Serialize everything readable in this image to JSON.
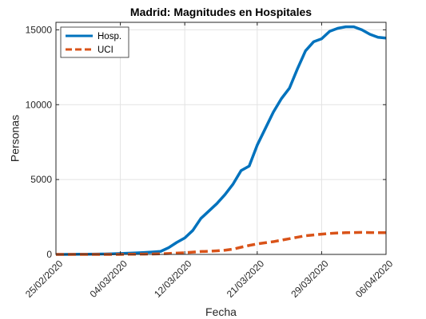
{
  "chart_data": {
    "type": "line",
    "title": "Madrid: Magnitudes en Hospitales",
    "xlabel": "Fecha",
    "ylabel": "Personas",
    "xlim": [
      "25/02/2020",
      "06/04/2020"
    ],
    "ylim": [
      0,
      15500
    ],
    "x_ticks": [
      "25/02/2020",
      "04/03/2020",
      "12/03/2020",
      "21/03/2020",
      "29/03/2020",
      "06/04/2020"
    ],
    "y_ticks": [
      0,
      5000,
      10000,
      15000
    ],
    "grid": true,
    "legend_position": "top-left",
    "x": [
      "25/02/2020",
      "26/02/2020",
      "27/02/2020",
      "28/02/2020",
      "29/02/2020",
      "01/03/2020",
      "02/03/2020",
      "03/03/2020",
      "04/03/2020",
      "05/03/2020",
      "06/03/2020",
      "07/03/2020",
      "08/03/2020",
      "09/03/2020",
      "10/03/2020",
      "11/03/2020",
      "12/03/2020",
      "13/03/2020",
      "14/03/2020",
      "15/03/2020",
      "16/03/2020",
      "17/03/2020",
      "18/03/2020",
      "19/03/2020",
      "20/03/2020",
      "21/03/2020",
      "22/03/2020",
      "23/03/2020",
      "24/03/2020",
      "25/03/2020",
      "26/03/2020",
      "27/03/2020",
      "28/03/2020",
      "29/03/2020",
      "30/03/2020",
      "31/03/2020",
      "01/04/2020",
      "02/04/2020",
      "03/04/2020",
      "04/04/2020",
      "05/04/2020",
      "06/04/2020"
    ],
    "series": [
      {
        "name": "Hosp.",
        "color": "#0072BD",
        "style": "solid",
        "values": [
          0,
          0,
          5,
          10,
          15,
          20,
          30,
          40,
          60,
          80,
          100,
          130,
          160,
          200,
          450,
          800,
          1100,
          1600,
          2400,
          2900,
          3400,
          4000,
          4700,
          5600,
          5900,
          7300,
          8400,
          9500,
          10400,
          11100,
          12400,
          13600,
          14200,
          14400,
          14900,
          15100,
          15200,
          15200,
          15000,
          14700,
          14500,
          14450
        ]
      },
      {
        "name": "UCI",
        "color": "#D95319",
        "style": "dashed",
        "values": [
          0,
          0,
          0,
          0,
          0,
          0,
          0,
          0,
          0,
          10,
          15,
          20,
          30,
          40,
          60,
          90,
          110,
          150,
          190,
          210,
          240,
          280,
          350,
          480,
          600,
          700,
          780,
          850,
          950,
          1050,
          1150,
          1250,
          1300,
          1350,
          1400,
          1430,
          1450,
          1460,
          1470,
          1460,
          1450,
          1450
        ]
      }
    ]
  }
}
